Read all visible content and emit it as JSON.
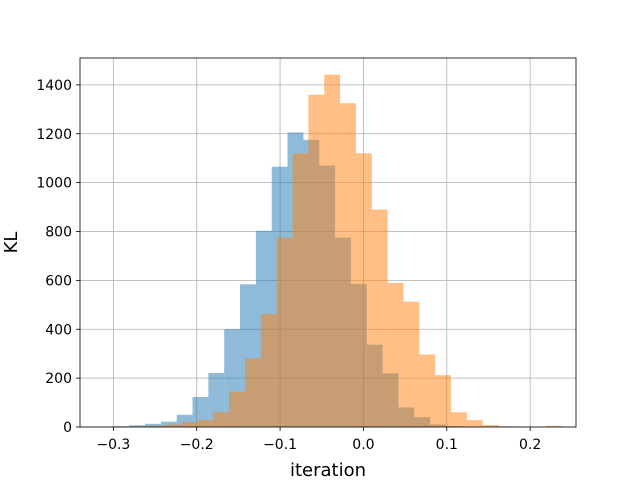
{
  "chart_data": {
    "type": "bar",
    "title": "",
    "xlabel": "iteration",
    "ylabel": "KL",
    "xlim": [
      -0.34,
      0.255
    ],
    "ylim": [
      0,
      1510
    ],
    "grid": true,
    "xticks": [
      {
        "value": -0.3,
        "label": "−0.3"
      },
      {
        "value": -0.2,
        "label": "−0.2"
      },
      {
        "value": -0.1,
        "label": "−0.1"
      },
      {
        "value": 0.0,
        "label": "0.0"
      },
      {
        "value": 0.1,
        "label": "0.1"
      },
      {
        "value": 0.2,
        "label": "0.2"
      }
    ],
    "yticks": [
      {
        "value": 0,
        "label": "0"
      },
      {
        "value": 200,
        "label": "200"
      },
      {
        "value": 400,
        "label": "400"
      },
      {
        "value": 600,
        "label": "600"
      },
      {
        "value": 800,
        "label": "800"
      },
      {
        "value": 1000,
        "label": "1000"
      },
      {
        "value": 1200,
        "label": "1200"
      },
      {
        "value": 1400,
        "label": "1400"
      }
    ],
    "series": [
      {
        "color": "#1f77b4",
        "opacity": 0.5,
        "bin_edges": [
          -0.3,
          -0.281,
          -0.262,
          -0.243,
          -0.224,
          -0.205,
          -0.186,
          -0.167,
          -0.148,
          -0.129,
          -0.11,
          -0.091,
          -0.072,
          -0.053,
          -0.034,
          -0.015,
          0.004,
          0.023,
          0.042,
          0.061,
          0.08,
          0.099,
          0.118,
          0.137,
          0.156,
          0.175
        ],
        "counts": [
          3,
          7,
          13,
          22,
          50,
          123,
          221,
          400,
          584,
          803,
          1065,
          1205,
          1175,
          1070,
          775,
          585,
          337,
          220,
          80,
          40,
          10,
          4,
          2,
          1,
          0
        ]
      },
      {
        "color": "#ff7f0e",
        "opacity": 0.5,
        "bin_edges": [
          -0.275,
          -0.256,
          -0.237,
          -0.218,
          -0.199,
          -0.18,
          -0.161,
          -0.142,
          -0.123,
          -0.104,
          -0.085,
          -0.066,
          -0.047,
          -0.028,
          -0.009,
          0.01,
          0.029,
          0.048,
          0.067,
          0.086,
          0.105,
          0.124,
          0.143,
          0.162,
          0.181,
          0.2,
          0.219,
          0.238
        ],
        "counts": [
          2,
          5,
          10,
          20,
          28,
          60,
          145,
          280,
          462,
          775,
          1120,
          1360,
          1442,
          1325,
          1120,
          890,
          590,
          513,
          297,
          212,
          60,
          28,
          8,
          3,
          1,
          0,
          5
        ]
      }
    ]
  }
}
